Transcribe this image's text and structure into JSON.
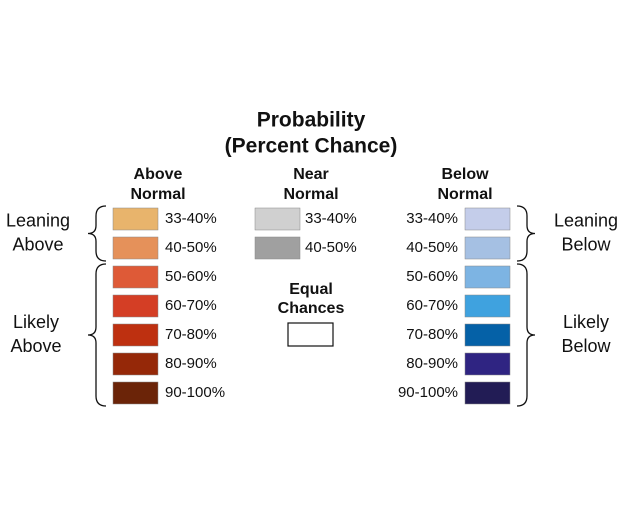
{
  "title": [
    "Probability",
    "(Percent Chance)"
  ],
  "columns": {
    "above": {
      "header": [
        "Above",
        "Normal"
      ],
      "items": [
        {
          "label": "33-40%",
          "color": "#E8B46C"
        },
        {
          "label": "40-50%",
          "color": "#E5915A"
        },
        {
          "label": "50-60%",
          "color": "#DE5A37"
        },
        {
          "label": "60-70%",
          "color": "#D43E25"
        },
        {
          "label": "70-80%",
          "color": "#BE3010"
        },
        {
          "label": "80-90%",
          "color": "#952808"
        },
        {
          "label": "90-100%",
          "color": "#6B2408"
        }
      ]
    },
    "near": {
      "header": [
        "Near",
        "Normal"
      ],
      "items": [
        {
          "label": "33-40%",
          "color": "#D0D0D0"
        },
        {
          "label": "40-50%",
          "color": "#A0A0A0"
        }
      ]
    },
    "below": {
      "header": [
        "Below",
        "Normal"
      ],
      "items": [
        {
          "label": "33-40%",
          "color": "#C4CDEA"
        },
        {
          "label": "40-50%",
          "color": "#A5C0E3"
        },
        {
          "label": "50-60%",
          "color": "#7DB4E3"
        },
        {
          "label": "60-70%",
          "color": "#3FA2DF"
        },
        {
          "label": "70-80%",
          "color": "#0561A7"
        },
        {
          "label": "80-90%",
          "color": "#2F2482"
        },
        {
          "label": "90-100%",
          "color": "#221C55"
        }
      ]
    }
  },
  "equal_chances": [
    "Equal",
    "Chances"
  ],
  "groups": {
    "leaning_above": [
      "Leaning",
      "Above"
    ],
    "likely_above": [
      "Likely",
      "Above"
    ],
    "leaning_below": [
      "Leaning",
      "Below"
    ],
    "likely_below": [
      "Likely",
      "Below"
    ]
  }
}
